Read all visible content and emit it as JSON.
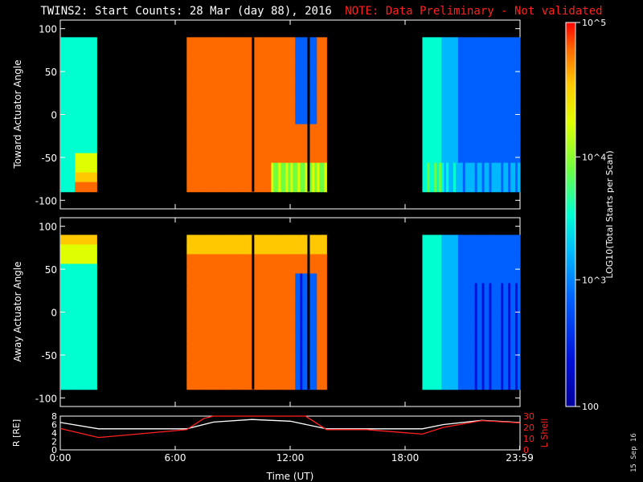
{
  "header": {
    "title": "TWINS2: Start Counts: 28 Mar (day  88), 2016",
    "note": "NOTE: Data Preliminary - Not validated"
  },
  "footer": {
    "stamp": "15 Sep 16"
  },
  "chart_data": [
    {
      "type": "heatmap",
      "ylabel": "Toward Actuator Angle",
      "ylim": [
        -110,
        110
      ],
      "yticks": [
        -100,
        -50,
        0,
        50,
        100
      ],
      "xlim_hours": [
        0,
        24
      ],
      "data_gaps_hours": [
        [
          1.9,
          6.6
        ],
        [
          13.9,
          18.9
        ]
      ],
      "data_blocks": [
        {
          "start_h": 0.0,
          "end_h": 1.9,
          "level": "mid (cyan-blue, yellow/red near -90)"
        },
        {
          "start_h": 6.6,
          "end_h": 13.9,
          "level": "high (orange-red, dark-blue streak near 12-13)"
        },
        {
          "start_h": 18.9,
          "end_h": 24.0,
          "level": "low (blue)"
        }
      ]
    },
    {
      "type": "heatmap",
      "ylabel": "Away Actuator Angle",
      "ylim": [
        -110,
        110
      ],
      "yticks": [
        -100,
        -50,
        0,
        50,
        100
      ],
      "xlim_hours": [
        0,
        24
      ],
      "data_gaps_hours": [
        [
          1.9,
          6.6
        ],
        [
          13.9,
          18.9
        ]
      ],
      "data_blocks": [
        {
          "start_h": 0.0,
          "end_h": 1.9,
          "level": "mid (cyan-blue, yellow near +90)"
        },
        {
          "start_h": 6.6,
          "end_h": 13.9,
          "level": "high (orange-red, blue region near 12-13)"
        },
        {
          "start_h": 18.9,
          "end_h": 24.0,
          "level": "low (blue)"
        }
      ]
    },
    {
      "type": "line",
      "xlabel": "Time (UT)",
      "xticks": [
        "0:00",
        "6:00",
        "12:00",
        "18:00",
        "23:59"
      ],
      "ylabel_left": "R [RE]",
      "ylim_left": [
        0,
        8
      ],
      "yticks_left": [
        0,
        2,
        4,
        6,
        8
      ],
      "ylabel_right": "L Shell",
      "ylim_right": [
        0,
        30
      ],
      "yticks_right": [
        0,
        10,
        20,
        30
      ],
      "series": [
        {
          "name": "R [RE]",
          "color": "#ffffff",
          "x": [
            0,
            2,
            4,
            6.6,
            8,
            10,
            12,
            13.9,
            16,
            18.9,
            20,
            22,
            24
          ],
          "y": [
            6.5,
            5.0,
            5.0,
            5.0,
            6.6,
            7.2,
            6.8,
            5.0,
            5.0,
            5.0,
            6.0,
            7.0,
            6.5
          ]
        },
        {
          "name": "L Shell",
          "color": "#ff2020",
          "x": [
            0,
            2,
            4,
            6.6,
            7.5,
            8.0,
            12.8,
            13.9,
            16,
            18.9,
            20,
            22,
            24
          ],
          "y": [
            19,
            11,
            14,
            18,
            28,
            32,
            32,
            18,
            18,
            14,
            20,
            26,
            24
          ]
        }
      ]
    }
  ],
  "colorbar": {
    "label": "LOG10(Total Starts per Scan)",
    "ticks": [
      "10^5",
      "10^4",
      "10^3",
      "100"
    ],
    "colors": [
      "#ff0000",
      "#ff6a00",
      "#ffc800",
      "#dfff00",
      "#70ff40",
      "#00ffd0",
      "#00b8ff",
      "#0060ff",
      "#0010d8",
      "#00009a"
    ]
  }
}
